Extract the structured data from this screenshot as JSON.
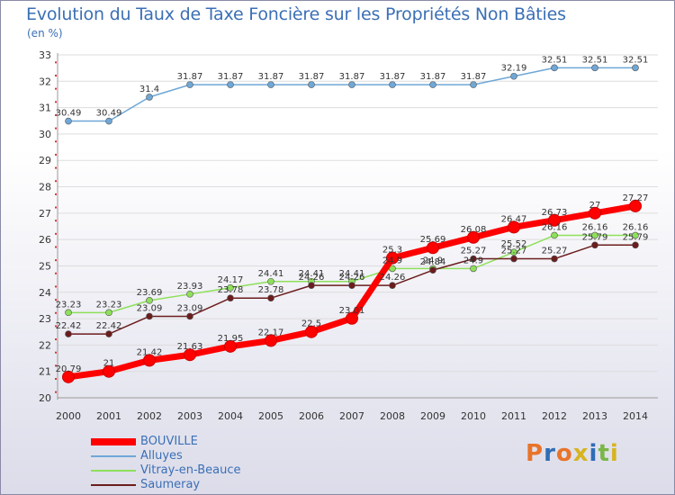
{
  "header": {
    "title": "Evolution du Taux de Taxe Foncière sur les Propriétés Non Bâties",
    "unit": "(en %)"
  },
  "brand": {
    "logo_text": "Proxiti",
    "logo_colors": [
      "#e8742a",
      "#2f6db5",
      "#e8742a",
      "#d6b422",
      "#2f6db5",
      "#7ab648",
      "#d6b422"
    ]
  },
  "colors": {
    "axis_text": "#333333",
    "grid": "#dddddd",
    "title": "#3b6fb5"
  },
  "chart_data": {
    "type": "line",
    "title": "Evolution du Taux de Taxe Foncière sur les Propriétés Non Bâties",
    "ylabel": "(en %)",
    "xlabel": "",
    "x": [
      "2000",
      "2001",
      "2002",
      "2003",
      "2004",
      "2005",
      "2006",
      "2007",
      "2008",
      "2009",
      "2010",
      "2011",
      "2012",
      "2013",
      "2014"
    ],
    "ylim": [
      20,
      33
    ],
    "yticks": [
      "20",
      "21",
      "22",
      "23",
      "24",
      "25",
      "26",
      "27",
      "28",
      "29",
      "30",
      "31",
      "32",
      "33"
    ],
    "grid": true,
    "legend_position": "bottom-left",
    "series": [
      {
        "name": "BOUVILLE",
        "color": "#ff0000",
        "values": [
          20.79,
          21,
          21.42,
          21.63,
          21.95,
          22.17,
          22.5,
          23.01,
          25.3,
          25.69,
          26.08,
          26.47,
          26.73,
          27,
          27.27
        ],
        "labels": [
          "20.79",
          "21",
          "21.42",
          "21.63",
          "21.95",
          "22.17",
          "22.5",
          "23.01",
          "25.3",
          "25.69",
          "26.08",
          "26.47",
          "26.73",
          "27",
          "27.27"
        ]
      },
      {
        "name": "Alluyes",
        "color": "#6fa7d6",
        "values": [
          30.49,
          30.49,
          31.4,
          31.87,
          31.87,
          31.87,
          31.87,
          31.87,
          31.87,
          31.87,
          31.87,
          32.19,
          32.51,
          32.51,
          32.51
        ],
        "labels": [
          "30.49",
          "30.49",
          "31.4",
          "31.87",
          "31.87",
          "31.87",
          "31.87",
          "31.87",
          "31.87",
          "31.87",
          "31.87",
          "32.19",
          "32.51",
          "32.51",
          "32.51"
        ]
      },
      {
        "name": "Vitray-en-Beauce",
        "color": "#8ee05a",
        "values": [
          23.23,
          23.23,
          23.69,
          23.93,
          24.17,
          24.41,
          24.41,
          24.41,
          24.9,
          24.9,
          24.9,
          25.52,
          26.16,
          26.16,
          26.16
        ],
        "labels": [
          "23.23",
          "23.23",
          "23.69",
          "23.93",
          "24.17",
          "24.41",
          "24.41",
          "24.41",
          "24.9",
          "24.9",
          "24.9",
          "25.52",
          "26.16",
          "26.16",
          "26.16"
        ]
      },
      {
        "name": "Saumeray",
        "color": "#6b1d1d",
        "values": [
          22.42,
          22.42,
          23.09,
          23.09,
          23.78,
          23.78,
          24.26,
          24.26,
          24.26,
          24.84,
          25.27,
          25.27,
          25.27,
          25.79,
          25.79
        ],
        "labels": [
          "22.42",
          "22.42",
          "23.09",
          "23.09",
          "23.78",
          "23.78",
          "24.26",
          "24.26",
          "24.26",
          "24.84",
          "25.27",
          "25.27",
          "25.27",
          "25.79",
          "25.79"
        ]
      }
    ]
  }
}
